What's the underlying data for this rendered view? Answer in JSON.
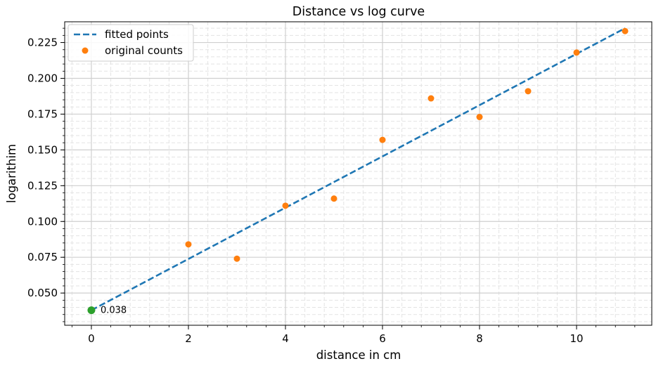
{
  "chart_data": {
    "type": "scatter",
    "title": "Distance vs log curve",
    "xlabel": "distance in cm",
    "ylabel": "logarithim",
    "xlim": [
      -0.55,
      11.55
    ],
    "ylim": [
      0.0275,
      0.2395
    ],
    "xticks": [
      0,
      2,
      4,
      6,
      8,
      10
    ],
    "yticks": [
      0.05,
      0.075,
      0.1,
      0.125,
      0.15,
      0.175,
      0.2,
      0.225
    ],
    "ytick_labels": [
      "0.050",
      "0.075",
      "0.100",
      "0.125",
      "0.150",
      "0.175",
      "0.200",
      "0.225"
    ],
    "grid": true,
    "minor_grid": true,
    "legend_position": "top-left",
    "series": [
      {
        "name": "fitted points",
        "style": "dashed-line",
        "color": "#1f77b4",
        "x": [
          0,
          11
        ],
        "y": [
          0.038,
          0.235
        ]
      },
      {
        "name": "original counts",
        "style": "markers",
        "color": "#ff7f0e",
        "x": [
          2,
          3,
          4,
          5,
          6,
          7,
          8,
          9,
          10,
          11
        ],
        "y": [
          0.084,
          0.074,
          0.111,
          0.116,
          0.157,
          0.186,
          0.173,
          0.191,
          0.218,
          0.233
        ]
      }
    ],
    "highlight_point": {
      "x": 0,
      "y": 0.038,
      "color": "#2ca02c"
    },
    "annotations": [
      {
        "text": "0.038",
        "x": 0,
        "y": 0.038
      }
    ]
  }
}
